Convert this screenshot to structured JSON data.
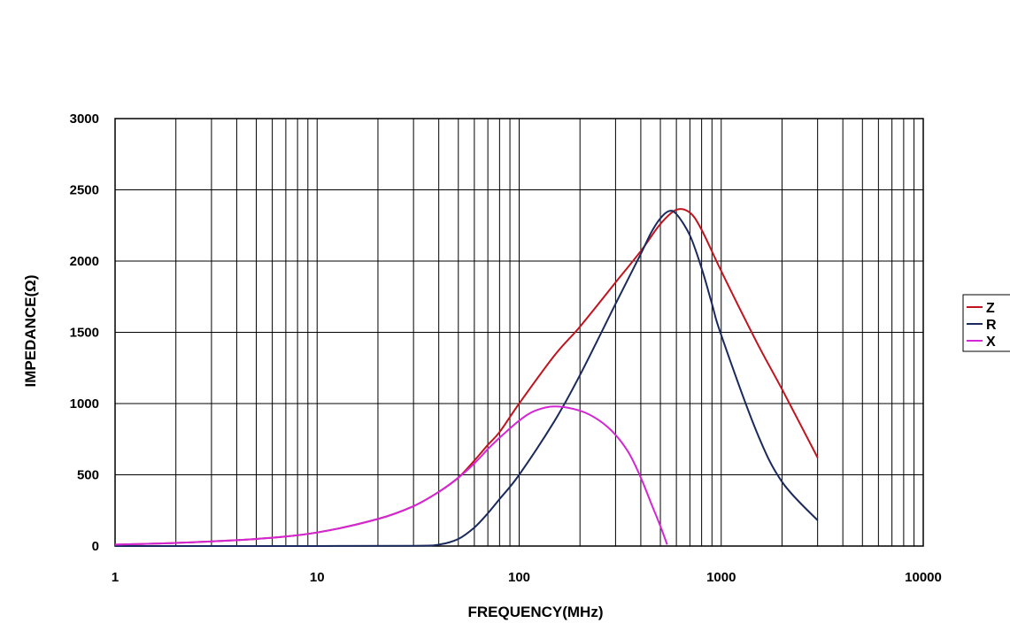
{
  "chart_data": {
    "type": "line",
    "xscale": "log",
    "xlim": [
      1,
      10000
    ],
    "ylim": [
      0,
      3000
    ],
    "grid": true,
    "legend_position": "right",
    "xlabel": "FREQUENCY(MHz)",
    "ylabel": "IMPEDANCE(Ω)",
    "x_ticks": [
      1,
      10,
      100,
      1000,
      10000
    ],
    "x_tick_labels": [
      "1",
      "10",
      "100",
      "1000",
      "10000"
    ],
    "y_ticks": [
      0,
      500,
      1000,
      1500,
      2000,
      2500,
      3000
    ],
    "y_tick_labels": [
      "0",
      "500",
      "1000",
      "1500",
      "2000",
      "2500",
      "3000"
    ],
    "series": [
      {
        "name": "Z",
        "color": "#c0141e",
        "x": [
          1,
          2,
          5,
          10,
          20,
          30,
          40,
          50,
          60,
          70,
          80,
          100,
          150,
          200,
          300,
          400,
          500,
          600,
          700,
          800,
          1000,
          1500,
          2000,
          3000
        ],
        "y": [
          10,
          22,
          50,
          95,
          190,
          280,
          380,
          480,
          600,
          710,
          800,
          1000,
          1340,
          1540,
          1850,
          2070,
          2260,
          2360,
          2340,
          2220,
          1930,
          1430,
          1100,
          620
        ]
      },
      {
        "name": "R",
        "color": "#1b2a5e",
        "x": [
          1,
          10,
          30,
          40,
          50,
          60,
          70,
          80,
          100,
          150,
          200,
          300,
          400,
          450,
          500,
          550,
          600,
          700,
          800,
          900,
          1000,
          1500,
          2000,
          3000
        ],
        "y": [
          0,
          0,
          2,
          10,
          50,
          130,
          230,
          330,
          500,
          880,
          1200,
          1700,
          2050,
          2200,
          2300,
          2350,
          2330,
          2180,
          1950,
          1700,
          1480,
          800,
          450,
          180
        ]
      },
      {
        "name": "X",
        "color": "#d426d4",
        "x": [
          1,
          2,
          5,
          10,
          20,
          30,
          40,
          50,
          60,
          70,
          80,
          100,
          120,
          150,
          200,
          250,
          300,
          350,
          400,
          450,
          500,
          540
        ],
        "y": [
          10,
          22,
          50,
          95,
          190,
          280,
          380,
          480,
          580,
          680,
          760,
          880,
          950,
          980,
          950,
          880,
          780,
          650,
          480,
          300,
          140,
          10
        ]
      }
    ]
  }
}
